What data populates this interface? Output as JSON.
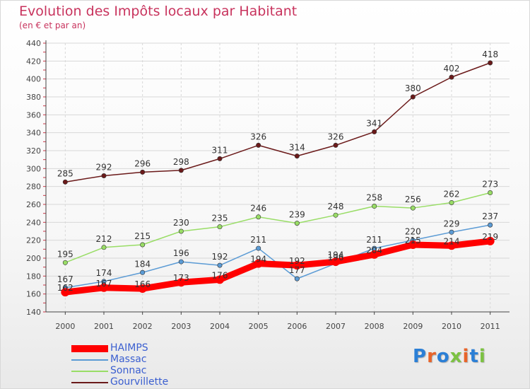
{
  "header": {
    "title": "Evolution des Impôts locaux par Habitant",
    "subtitle": "(en € et par an)"
  },
  "legend": [
    {
      "label": "HAIMPS",
      "color": "#ff0000"
    },
    {
      "label": "Massac",
      "color": "#5b9bd5"
    },
    {
      "label": "Sonnac",
      "color": "#99dd66"
    },
    {
      "label": "Gourvillette",
      "color": "#6b1a1a"
    }
  ],
  "logo": {
    "text": "Proxiti"
  },
  "chart_data": {
    "type": "line",
    "title": "Evolution des Impôts locaux par Habitant",
    "subtitle": "(en € et par an)",
    "x": [
      2000,
      2001,
      2002,
      2003,
      2004,
      2005,
      2006,
      2007,
      2008,
      2009,
      2010,
      2011
    ],
    "ylim": [
      140,
      440
    ],
    "yticks": [
      140,
      160,
      180,
      200,
      220,
      240,
      260,
      280,
      300,
      320,
      340,
      360,
      380,
      400,
      420,
      440
    ],
    "grid": true,
    "legend_position": "bottom-left",
    "series": [
      {
        "name": "Gourvillette",
        "color": "#6b1a1a",
        "values": [
          285,
          292,
          296,
          298,
          311,
          326,
          314,
          326,
          341,
          380,
          402,
          418
        ]
      },
      {
        "name": "Sonnac",
        "color": "#99dd66",
        "values": [
          195,
          212,
          215,
          230,
          235,
          246,
          239,
          248,
          258,
          256,
          262,
          273
        ]
      },
      {
        "name": "Massac",
        "color": "#5b9bd5",
        "values": [
          167,
          174,
          184,
          196,
          192,
          211,
          177,
          194,
          211,
          220,
          229,
          237
        ]
      },
      {
        "name": "HAIMPS",
        "color": "#ff0000",
        "values": [
          162,
          167,
          166,
          173,
          176,
          194,
          192,
          196,
          204,
          215,
          214,
          219
        ]
      }
    ]
  }
}
